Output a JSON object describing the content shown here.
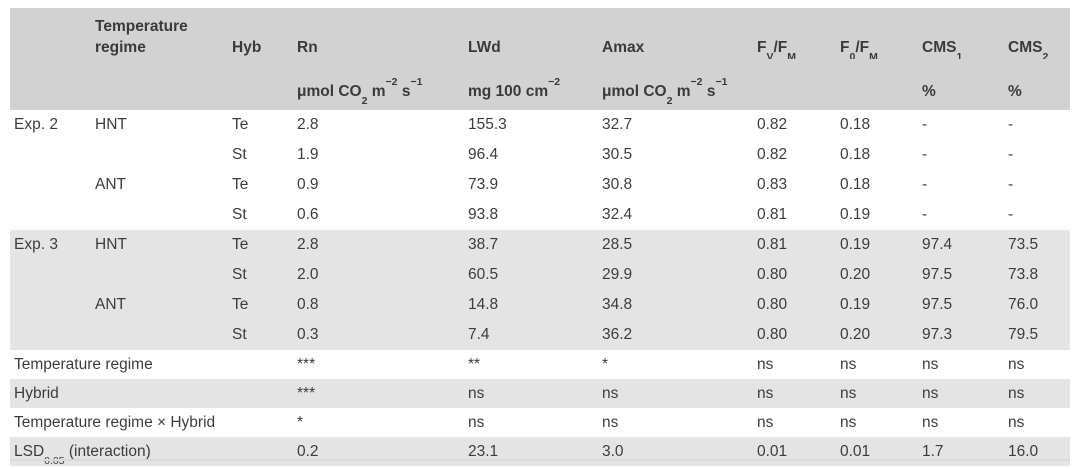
{
  "table": {
    "header": {
      "temp_regime": "Temperature regime",
      "hyb": "Hyb",
      "rn": "Rn",
      "lwd": "LWd",
      "amax": "Amax",
      "fvfm": {
        "f1": "F",
        "sub1": "V",
        "f2": "/F",
        "sub2": "M"
      },
      "f0fm": {
        "f1": "F",
        "sub1": "0",
        "f2": "/F",
        "sub2": "M"
      },
      "cms1": {
        "base": "CMS",
        "sub": "1"
      },
      "cms2": {
        "base": "CMS",
        "sub": "2"
      },
      "units": {
        "umol_co2": {
          "p1": "μmol CO",
          "s1": "2",
          "p2": " m",
          "e1": "−2",
          "p3": " s",
          "e2": "−1"
        },
        "mg_100cm": {
          "p1": "mg 100 cm",
          "e1": "−2"
        },
        "percent": "%"
      }
    },
    "rows": [
      {
        "cells": [
          "Exp. 2",
          "HNT",
          "Te",
          "2.8",
          "155.3",
          "32.7",
          "0.82",
          "0.18",
          "-",
          "-"
        ]
      },
      {
        "cells": [
          "",
          "",
          "St",
          "1.9",
          "96.4",
          "30.5",
          "0.82",
          "0.18",
          "-",
          "-"
        ]
      },
      {
        "cells": [
          "",
          "ANT",
          "Te",
          "0.9",
          "73.9",
          "30.8",
          "0.83",
          "0.18",
          "-",
          "-"
        ]
      },
      {
        "cells": [
          "",
          "",
          "St",
          "0.6",
          "93.8",
          "32.4",
          "0.81",
          "0.19",
          "-",
          "-"
        ]
      },
      {
        "cells": [
          "Exp. 3",
          "HNT",
          "Te",
          "2.8",
          "38.7",
          "28.5",
          "0.81",
          "0.19",
          "97.4",
          "73.5"
        ]
      },
      {
        "cells": [
          "",
          "",
          "St",
          "2.0",
          "60.5",
          "29.9",
          "0.80",
          "0.20",
          "97.5",
          "73.8"
        ]
      },
      {
        "cells": [
          "",
          "ANT",
          "Te",
          "0.8",
          "14.8",
          "34.8",
          "0.80",
          "0.19",
          "97.5",
          "76.0"
        ]
      },
      {
        "cells": [
          "",
          "",
          "St",
          "0.3",
          "7.4",
          "36.2",
          "0.80",
          "0.20",
          "97.3",
          "79.5"
        ]
      }
    ],
    "anova": [
      {
        "label": "Temperature regime",
        "values": [
          "***",
          "**",
          "*",
          "ns",
          "ns",
          "ns",
          "ns"
        ]
      },
      {
        "label": "Hybrid",
        "values": [
          "***",
          "ns",
          "ns",
          "ns",
          "ns",
          "ns",
          "ns"
        ]
      },
      {
        "label": "Temperature regime × Hybrid",
        "values": [
          "*",
          "ns",
          "ns",
          "ns",
          "ns",
          "ns",
          "ns"
        ]
      },
      {
        "label_main": "LSD",
        "label_sub": "0.05",
        "label_rest": " (interaction)",
        "values": [
          "0.2",
          "23.1",
          "3.0",
          "0.01",
          "0.01",
          "1.7",
          "16.0"
        ]
      }
    ],
    "colors": {
      "header_bg": "#d2d2d2",
      "stripe_bg": "#e4e4e5",
      "text": "#3c3c3c",
      "bottom_rule": "#d9d9d9"
    }
  }
}
